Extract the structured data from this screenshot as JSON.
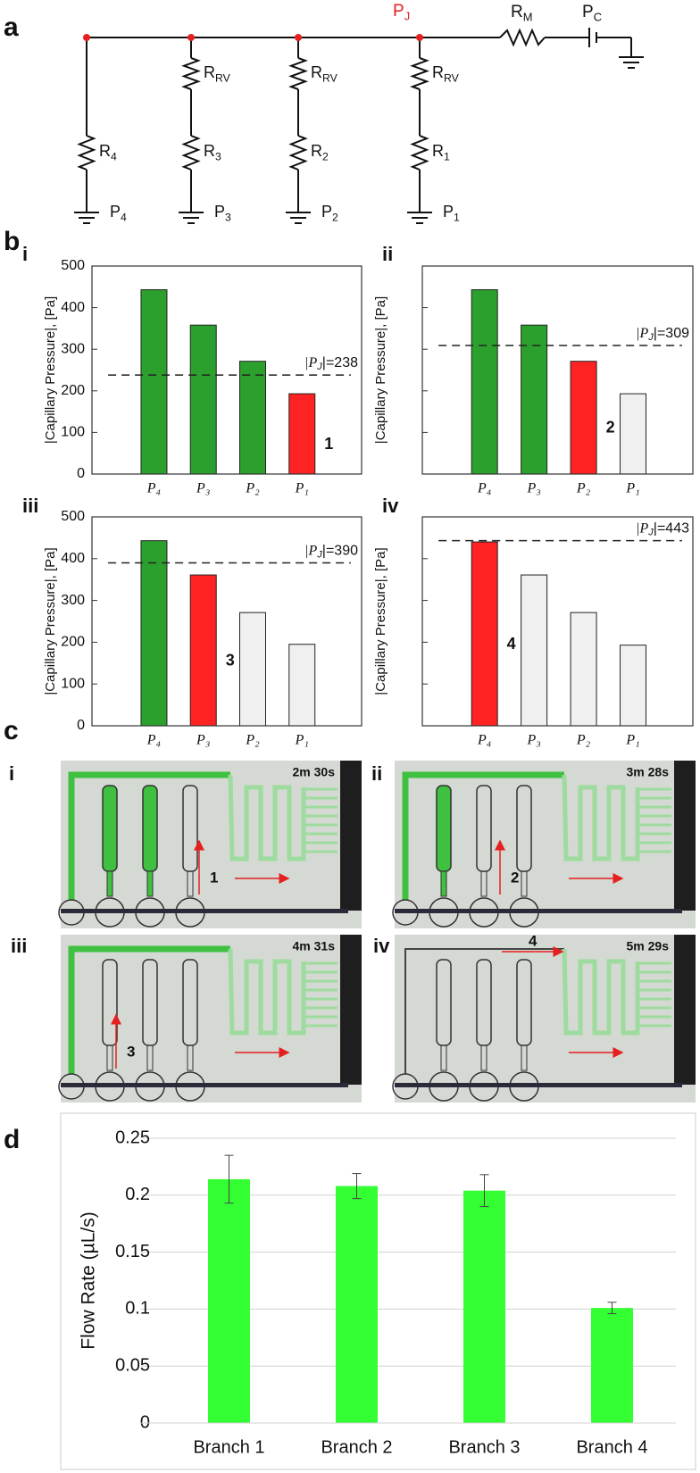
{
  "panel_labels": [
    "a",
    "b",
    "c",
    "d"
  ],
  "circuit": {
    "junction": {
      "text": "P",
      "sub": "J"
    },
    "main_resistor": {
      "text": "R",
      "sub": "M"
    },
    "source": {
      "text": "P",
      "sub": "C"
    },
    "branches": [
      {
        "r": {
          "text": "R",
          "sub": "4"
        },
        "p": {
          "text": "P",
          "sub": "4"
        }
      },
      {
        "rv": {
          "text": "R",
          "sub": "RV"
        },
        "r": {
          "text": "R",
          "sub": "3"
        },
        "p": {
          "text": "P",
          "sub": "3"
        }
      },
      {
        "rv": {
          "text": "R",
          "sub": "RV"
        },
        "r": {
          "text": "R",
          "sub": "2"
        },
        "p": {
          "text": "P",
          "sub": "2"
        }
      },
      {
        "rv": {
          "text": "R",
          "sub": "RV"
        },
        "r": {
          "text": "R",
          "sub": "1"
        },
        "p": {
          "text": "P",
          "sub": "1"
        }
      }
    ]
  },
  "chart_data": [
    {
      "type": "bar",
      "label": "i",
      "ylabel": "|Capillary Pressure|, [Pa]",
      "categories": [
        "P₄",
        "P₃",
        "P₂",
        "P₁"
      ],
      "values": [
        443,
        358,
        271,
        193
      ],
      "colors": [
        "#2ca02c",
        "#2ca02c",
        "#2ca02c",
        "#ff2222"
      ],
      "ylim": [
        0,
        500
      ],
      "yticks": [
        0,
        100,
        200,
        300,
        400,
        500
      ],
      "ytick_labels": true,
      "threshold": 238,
      "threshold_label": {
        "text": "|P",
        "sub": "J",
        "eq": "|="
      },
      "annotation": "1"
    },
    {
      "type": "bar",
      "label": "ii",
      "ylabel": "|Capillary Pressure|, [Pa]",
      "categories": [
        "P₄",
        "P₃",
        "P₂",
        "P₁"
      ],
      "values": [
        443,
        358,
        271,
        193
      ],
      "colors": [
        "#2ca02c",
        "#2ca02c",
        "#ff2222",
        "#f0f0f0"
      ],
      "ylim": [
        0,
        500
      ],
      "yticks": [
        0,
        100,
        200,
        300,
        400,
        500
      ],
      "ytick_labels": false,
      "threshold": 309,
      "threshold_label": {
        "text": "|P",
        "sub": "J",
        "eq": "|="
      },
      "annotation": "2"
    },
    {
      "type": "bar",
      "label": "iii",
      "ylabel": "|Capillary Pressure|, [Pa]",
      "categories": [
        "P₄",
        "P₃",
        "P₂",
        "P₁"
      ],
      "values": [
        443,
        361,
        271,
        195
      ],
      "colors": [
        "#2ca02c",
        "#ff2222",
        "#f0f0f0",
        "#f0f0f0"
      ],
      "ylim": [
        0,
        500
      ],
      "yticks": [
        0,
        100,
        200,
        300,
        400,
        500
      ],
      "ytick_labels": true,
      "threshold": 390,
      "threshold_label": {
        "text": "|P",
        "sub": "J",
        "eq": "|="
      },
      "annotation": "3"
    },
    {
      "type": "bar",
      "label": "iv",
      "ylabel": "|Capillary Pressure|, [Pa]",
      "categories": [
        "P₄",
        "P₃",
        "P₂",
        "P₁"
      ],
      "values": [
        440,
        361,
        271,
        193
      ],
      "colors": [
        "#ff2222",
        "#f0f0f0",
        "#f0f0f0",
        "#f0f0f0"
      ],
      "ylim": [
        0,
        500
      ],
      "yticks": [
        0,
        100,
        200,
        300,
        400,
        500
      ],
      "ytick_labels": false,
      "threshold": 443,
      "threshold_label": {
        "text": "|P",
        "sub": "J",
        "eq": "|="
      },
      "annotation": "4"
    },
    {
      "type": "bar",
      "ylabel": "Flow Rate (µL/s)",
      "categories": [
        "Branch 1",
        "Branch 2",
        "Branch 3",
        "Branch 4"
      ],
      "values": [
        0.214,
        0.208,
        0.204,
        0.101
      ],
      "errors": [
        0.021,
        0.011,
        0.014,
        0.005
      ],
      "color": "#33ff33",
      "ylim": [
        0,
        0.25
      ],
      "yticks": [
        0,
        0.05,
        0.1,
        0.15,
        0.2,
        0.25
      ],
      "ytick_labels": true,
      "grid": true
    }
  ],
  "photos": [
    {
      "label": "i",
      "time": "2m 30s",
      "number": "1"
    },
    {
      "label": "ii",
      "time": "3m 28s",
      "number": "2"
    },
    {
      "label": "iii",
      "time": "4m 31s",
      "number": "3"
    },
    {
      "label": "iv",
      "time": "5m 29s",
      "number": "4"
    }
  ]
}
